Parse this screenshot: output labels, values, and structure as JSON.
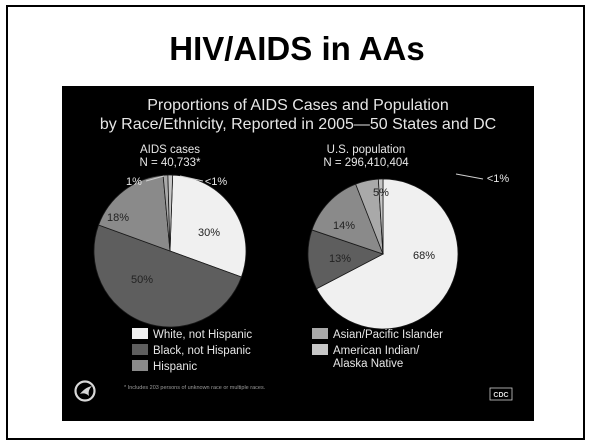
{
  "page": {
    "heading": "HIV/AIDS in AAs"
  },
  "slide": {
    "title_line1": "Proportions of AIDS Cases and Population",
    "title_line2": "by Race/Ethnicity, Reported in 2005—50 States and DC",
    "footnote": "* Includes 203 persons of unknown race or multiple races.",
    "cdc_label": "CDC",
    "logo_icon": "hhs-eagle-logo-icon"
  },
  "colors": {
    "white_not_hispanic": "#f0f0f0",
    "black_not_hispanic": "#5e5e5e",
    "hispanic": "#8a8a8a",
    "asian_pacific_islander": "#a9a9a9",
    "american_indian_alaska_native": "#c6c6c6"
  },
  "legend": [
    {
      "key": "white_not_hispanic",
      "label": "White, not Hispanic"
    },
    {
      "key": "black_not_hispanic",
      "label": "Black, not Hispanic"
    },
    {
      "key": "hispanic",
      "label": "Hispanic"
    },
    {
      "key": "asian_pacific_islander",
      "label": "Asian/Pacific Islander"
    },
    {
      "key": "american_indian_alaska_native",
      "label": "American Indian/",
      "label2": "Alaska Native"
    }
  ],
  "chart_data": [
    {
      "type": "pie",
      "title": "AIDS cases",
      "subtitle": "N = 40,733*",
      "unit": "%",
      "categories": [
        "White, not Hispanic",
        "Black, not Hispanic",
        "Hispanic",
        "Asian/Pacific Islander",
        "American Indian/Alaska Native"
      ],
      "values": [
        30,
        50,
        18,
        1,
        1
      ],
      "labels": [
        "30%",
        "50%",
        "18%",
        "1%",
        "<1%"
      ]
    },
    {
      "type": "pie",
      "title": "U.S. population",
      "subtitle": "N = 296,410,404",
      "unit": "%",
      "categories": [
        "White, not Hispanic",
        "Black, not Hispanic",
        "Hispanic",
        "Asian/Pacific Islander",
        "American Indian/Alaska Native"
      ],
      "values": [
        68,
        13,
        14,
        5,
        1
      ],
      "labels": [
        "68%",
        "13%",
        "14%",
        "5%",
        "<1%"
      ]
    }
  ]
}
